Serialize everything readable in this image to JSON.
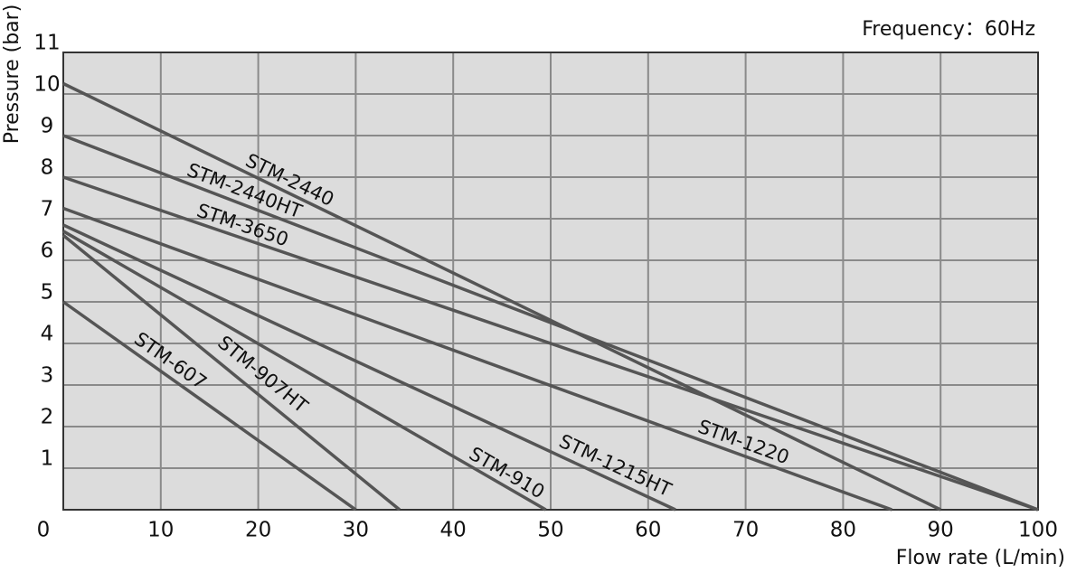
{
  "chart_data": {
    "type": "line",
    "annotation": "Frequency：60Hz",
    "x_label": "Flow rate (L/min)",
    "y_label": "Pressure (bar)",
    "xlim": [
      0,
      100
    ],
    "ylim": [
      0,
      11
    ],
    "xticks": [
      0,
      10,
      20,
      30,
      40,
      50,
      60,
      70,
      80,
      90,
      100
    ],
    "yticks": [
      1,
      2,
      3,
      4,
      5,
      6,
      7,
      8,
      9,
      10,
      11
    ],
    "grid": true,
    "series": [
      {
        "name": "STM-2440",
        "color": "#555555",
        "x": [
          0,
          90
        ],
        "values": [
          10.25,
          0
        ]
      },
      {
        "name": "STM-2440HT",
        "color": "#555555",
        "x": [
          0,
          100
        ],
        "values": [
          9,
          0
        ]
      },
      {
        "name": "STM-3650",
        "color": "#555555",
        "x": [
          0,
          100
        ],
        "values": [
          8,
          0
        ]
      },
      {
        "name": "STM-1220",
        "color": "#555555",
        "x": [
          0,
          85
        ],
        "values": [
          7.25,
          0
        ]
      },
      {
        "name": "STM-1215HT",
        "color": "#555555",
        "x": [
          0,
          62.8
        ],
        "values": [
          6.85,
          0
        ]
      },
      {
        "name": "STM-910",
        "color": "#555555",
        "x": [
          0,
          49.5
        ],
        "values": [
          6.7,
          0
        ]
      },
      {
        "name": "STM-907HT",
        "color": "#555555",
        "x": [
          0,
          34.5
        ],
        "values": [
          6.6,
          0
        ]
      },
      {
        "name": "STM-607",
        "color": "#555555",
        "x": [
          0,
          30
        ],
        "values": [
          5,
          0
        ]
      }
    ]
  }
}
